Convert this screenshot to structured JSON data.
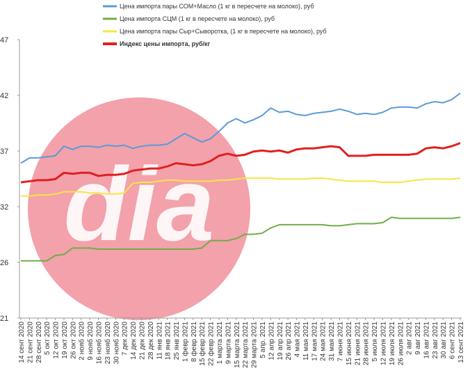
{
  "chart_data": {
    "type": "line",
    "watermark": "dia",
    "categories": [
      "14 сент 2020",
      "21 сент 2020",
      "28 сент 2020",
      "5 окт 2020",
      "12 окт 2020",
      "19 окт 2020",
      "26 окт 2020",
      "2 нояб 2020",
      "9 нояб 2020",
      "16 нояб 2020",
      "23 нояб 2020",
      "30 нояб 2020",
      "7 дек 2020",
      "14 дек 2020",
      "21 дек 2020",
      "28 дек 2020",
      "11 янв 2021",
      "18 янв 2021",
      "25 янв 2021",
      "1 февр 2021",
      "8 февр 2021",
      "15 февр 2021",
      "22 февр 2021",
      "1 марта 2021",
      "9 марта 2021",
      "15 марта 2021",
      "22 марта 2021",
      "29 марта 2021",
      "5 апр. 2021",
      "12 апр 2021",
      "19 апр 2021",
      "26 апр 2021",
      "4 мая 2021",
      "11 мая 2021",
      "17 мая 2021",
      "24 мая 2021",
      "31 мая 2021",
      "7 июня 2021",
      "15 июня 2021",
      "21 июня 2021",
      "28 июня 2021",
      "5 июля 2021",
      "12 июля 2021",
      "19 июля 2021",
      "26 июля 2021",
      "2 авг 2021",
      "9 авг 2021",
      "16 авг 2021",
      "23 авг 2021",
      "30 авг 2021",
      "6 сент 2021",
      "13 сент 2021"
    ],
    "series": [
      {
        "name": "Цена импорта пары СОМ+Масло  (1 кг в пересчете на молоко), руб",
        "color": "#5b9bd5",
        "width": 2,
        "values": [
          35.6,
          36.1,
          36.1,
          36.2,
          36.3,
          37.2,
          36.9,
          37.2,
          37.2,
          37.1,
          37.3,
          37.2,
          37.3,
          37.0,
          37.2,
          37.3,
          37.3,
          37.4,
          37.9,
          38.4,
          38.0,
          37.6,
          37.9,
          38.6,
          39.4,
          39.8,
          39.4,
          39.7,
          40.1,
          40.8,
          40.4,
          40.5,
          40.2,
          40.1,
          40.3,
          40.4,
          40.5,
          40.7,
          40.5,
          40.2,
          40.3,
          40.2,
          40.4,
          40.8,
          40.9,
          40.9,
          40.8,
          41.2,
          41.4,
          41.3,
          41.6,
          42.2
        ]
      },
      {
        "name": "Цена импорта СЦМ  (1 кг в пересчете на молоко), руб",
        "color": "#70ad47",
        "width": 2,
        "values": [
          26.4,
          26.4,
          26.4,
          26.4,
          26.9,
          27.0,
          27.6,
          27.6,
          27.6,
          27.5,
          27.5,
          27.5,
          27.5,
          27.5,
          27.5,
          27.5,
          27.5,
          27.5,
          27.5,
          27.5,
          27.5,
          27.6,
          28.3,
          28.3,
          28.3,
          28.5,
          28.9,
          28.9,
          29.0,
          29.5,
          29.8,
          29.8,
          29.8,
          29.8,
          29.8,
          29.8,
          29.7,
          29.7,
          29.8,
          29.9,
          29.9,
          29.9,
          30.0,
          30.5,
          30.4,
          30.4,
          30.4,
          30.4,
          30.4,
          30.4,
          30.4,
          30.5
        ]
      },
      {
        "name": "Цена импорта пары Сыр+Сыворотка,  (1 кг в пересчете на молоко), руб",
        "color": "#f5e642",
        "width": 2,
        "values": [
          32.5,
          32.5,
          32.6,
          32.6,
          32.7,
          32.9,
          32.9,
          32.9,
          32.8,
          32.8,
          32.7,
          32.7,
          32.8,
          33.7,
          33.8,
          33.8,
          33.9,
          34.0,
          34.0,
          33.9,
          33.9,
          33.9,
          33.9,
          34.0,
          34.0,
          34.1,
          34.2,
          34.2,
          34.2,
          34.2,
          34.1,
          34.1,
          34.1,
          34.1,
          34.2,
          34.2,
          34.1,
          34.0,
          33.9,
          33.9,
          33.9,
          33.9,
          33.8,
          33.8,
          33.8,
          33.9,
          34.0,
          34.1,
          34.1,
          34.1,
          34.1,
          34.2
        ]
      },
      {
        "name": "Индекс цены импорта, руб/кг",
        "color": "#e02020",
        "width": 3,
        "values": [
          33.8,
          33.9,
          34.0,
          34.0,
          34.1,
          34.7,
          34.6,
          34.7,
          34.7,
          34.4,
          34.5,
          34.5,
          34.6,
          34.9,
          35.0,
          35.1,
          35.1,
          35.3,
          35.6,
          35.5,
          35.4,
          35.5,
          35.8,
          36.3,
          36.5,
          36.3,
          36.4,
          36.7,
          36.8,
          36.7,
          36.8,
          36.6,
          36.9,
          37.0,
          37.0,
          37.1,
          37.2,
          37.1,
          36.3,
          36.3,
          36.3,
          36.4,
          36.4,
          36.4,
          36.4,
          36.4,
          36.5,
          37.0,
          37.1,
          37.0,
          37.2,
          37.5
        ]
      }
    ],
    "ylim": [
      21,
      47.25
    ],
    "yticks": [
      21,
      {
        "value": 26.25,
        "label": "26"
      },
      {
        "value": 31.5,
        "label": "32"
      },
      {
        "value": 36.75,
        "label": "37"
      },
      42,
      {
        "value": 47.25,
        "label": "47"
      }
    ]
  }
}
